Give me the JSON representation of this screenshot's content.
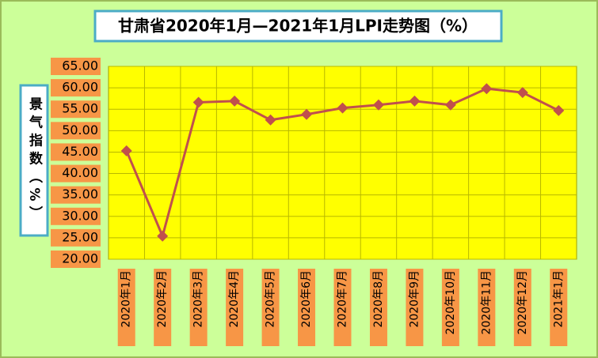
{
  "chart_data": {
    "type": "line",
    "title": "甘肃省2020年1月—2021年1月LPI走势图（%）",
    "y_label": "景气指数（%）",
    "categories": [
      "2020年1月",
      "2020年2月",
      "2020年3月",
      "2020年4月",
      "2020年5月",
      "2020年6月",
      "2020年7月",
      "2020年8月",
      "2020年9月",
      "2020年10月",
      "2020年11月",
      "2020年12月",
      "2021年1月"
    ],
    "series": [
      {
        "name": "LPI",
        "color": "#c0504d",
        "values": [
          45.3,
          25.4,
          56.6,
          56.9,
          52.5,
          53.8,
          55.3,
          56.0,
          56.9,
          56.0,
          59.8,
          58.9,
          54.7
        ]
      }
    ],
    "ylim": [
      20,
      65
    ],
    "yticks": [
      {
        "value": 20,
        "label": "20.00"
      },
      {
        "value": 25,
        "label": "25.00"
      },
      {
        "value": 30,
        "label": "30.00"
      },
      {
        "value": 35,
        "label": "35.00"
      },
      {
        "value": 40,
        "label": "40.00"
      },
      {
        "value": 45,
        "label": "45.00"
      },
      {
        "value": 50,
        "label": "50.00"
      },
      {
        "value": 55,
        "label": "55.00"
      },
      {
        "value": 60,
        "label": "60.00"
      },
      {
        "value": 65,
        "label": "65.00"
      }
    ],
    "grid": true
  }
}
